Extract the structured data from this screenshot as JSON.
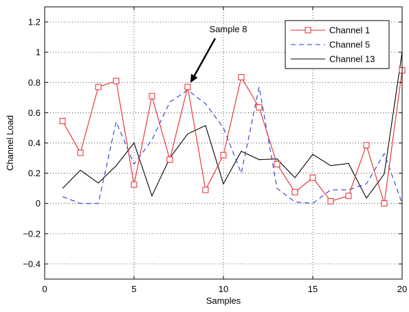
{
  "chart_data": {
    "type": "line",
    "xlabel": "Samples",
    "ylabel": "Channel Load",
    "xlim": [
      0,
      20
    ],
    "ylim": [
      -0.5,
      1.3
    ],
    "x_ticks": [
      "0",
      "5",
      "10",
      "15",
      "20"
    ],
    "y_ticks": [
      "−0.4",
      "−0.2",
      "0",
      "0.2",
      "0.4",
      "0.6",
      "0.8",
      "1",
      "1.2"
    ],
    "grid": "dotted",
    "legend_position": "top-right",
    "x": [
      1,
      2,
      3,
      4,
      5,
      6,
      7,
      8,
      9,
      10,
      11,
      12,
      13,
      14,
      15,
      16,
      17,
      18,
      19,
      20
    ],
    "series": [
      {
        "name": "Channel 1",
        "color": "#e8262a",
        "style": "solid-square-markers",
        "values": [
          0.545,
          0.335,
          0.77,
          0.81,
          0.125,
          0.71,
          0.29,
          0.77,
          0.09,
          0.32,
          0.835,
          0.635,
          0.26,
          0.075,
          0.17,
          0.015,
          0.05,
          0.385,
          0.0,
          0.88
        ]
      },
      {
        "name": "Channel 5",
        "color": "#2138d6",
        "style": "dashed",
        "values": [
          0.045,
          0.0,
          0.0,
          0.54,
          0.26,
          0.42,
          0.67,
          0.75,
          0.66,
          0.5,
          0.2,
          0.77,
          0.1,
          0.01,
          0.0,
          0.09,
          0.09,
          0.13,
          0.33,
          0.0
        ]
      },
      {
        "name": "Channel 13",
        "color": "#000000",
        "style": "solid",
        "values": [
          0.1,
          0.22,
          0.135,
          0.25,
          0.4,
          0.05,
          0.3,
          0.46,
          0.515,
          0.13,
          0.345,
          0.29,
          0.295,
          0.17,
          0.325,
          0.25,
          0.265,
          0.035,
          0.195,
          1.0
        ]
      }
    ],
    "annotation": {
      "text": "Sample 8",
      "target_x": 8,
      "target_y": 0.77
    }
  }
}
